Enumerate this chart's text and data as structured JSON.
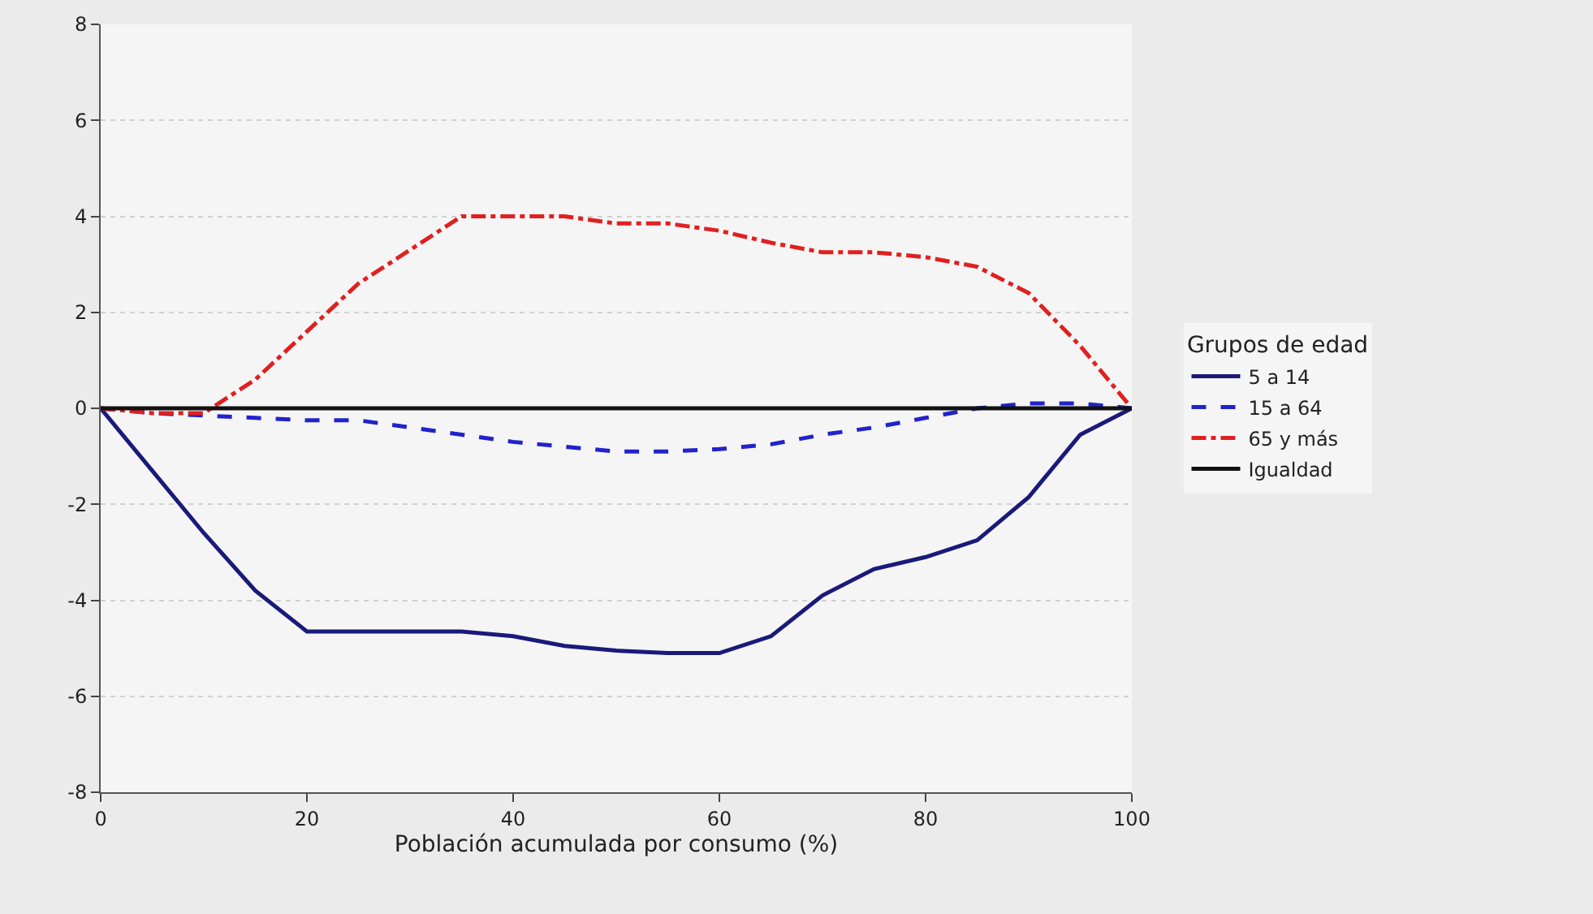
{
  "chart_data": {
    "type": "line",
    "xlabel": "Población acumulada por consumo (%)",
    "legend_title": "Grupos de edad",
    "legend": "right",
    "grid": "y",
    "marker": "none",
    "x": [
      0,
      5,
      10,
      15,
      20,
      25,
      30,
      35,
      40,
      45,
      50,
      55,
      60,
      65,
      70,
      75,
      80,
      85,
      90,
      95,
      100
    ],
    "xlim": [
      0,
      100
    ],
    "xticks": [
      0,
      20,
      40,
      60,
      80,
      100
    ],
    "ylim": [
      -8,
      8
    ],
    "yticks": [
      -8,
      -6,
      -4,
      -2,
      0,
      2,
      4,
      6,
      8
    ],
    "series": [
      {
        "name": "5 a 14",
        "color": "#1a1a7a",
        "line_style": "solid",
        "values": [
          0,
          -1.3,
          -2.6,
          -3.8,
          -4.65,
          -4.65,
          -4.65,
          -4.65,
          -4.75,
          -4.95,
          -5.05,
          -5.1,
          -5.1,
          -4.75,
          -3.9,
          -3.35,
          -3.1,
          -2.75,
          -1.85,
          -0.55,
          0
        ]
      },
      {
        "name": "15 a 64",
        "color": "#2222cc",
        "line_style": "dashed",
        "values": [
          0,
          -0.1,
          -0.15,
          -0.2,
          -0.25,
          -0.25,
          -0.4,
          -0.55,
          -0.7,
          -0.8,
          -0.9,
          -0.9,
          -0.85,
          -0.75,
          -0.55,
          -0.4,
          -0.2,
          0,
          0.1,
          0.1,
          0
        ]
      },
      {
        "name": "65 y más",
        "color": "#e02020",
        "line_style": "dotted",
        "values": [
          0,
          -0.1,
          -0.1,
          0.6,
          1.6,
          2.6,
          3.3,
          4.0,
          4.0,
          4.0,
          3.85,
          3.85,
          3.7,
          3.45,
          3.25,
          3.25,
          3.15,
          2.95,
          2.4,
          1.3,
          0
        ]
      },
      {
        "name": "Igualdad",
        "color": "#111111",
        "line_style": "solid",
        "x": [
          0,
          100
        ],
        "values": [
          0,
          0
        ]
      }
    ]
  }
}
